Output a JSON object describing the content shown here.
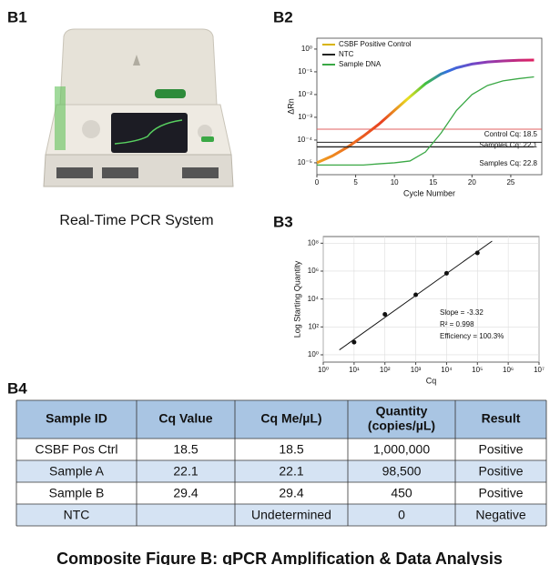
{
  "panels": {
    "b1": "B1",
    "b2": "B2",
    "b3": "B3",
    "b4": "B4"
  },
  "device_caption": "Real-Time PCR System",
  "chart_data": [
    {
      "type": "line",
      "xlabel": "Cycle Number",
      "ylabel": "ΔRn",
      "yscale": "log",
      "grid": false,
      "legend": "top-left",
      "x": [
        0,
        2,
        4,
        6,
        8,
        10,
        12,
        14,
        16,
        18,
        20,
        22,
        24,
        26,
        28
      ],
      "xlim": [
        0,
        29
      ],
      "xticks": [
        0,
        5,
        10,
        15,
        20,
        25
      ],
      "ylim": [
        3e-06,
        3
      ],
      "yticks": [
        {
          "value": 1e-05,
          "label": "10⁻⁵"
        },
        {
          "value": 0.0001,
          "label": "10⁻⁴"
        },
        {
          "value": 0.001,
          "label": "10⁻³"
        },
        {
          "value": 0.01,
          "label": "10⁻²"
        },
        {
          "value": 0.1,
          "label": "10⁻¹"
        },
        {
          "value": 1,
          "label": "10⁰"
        }
      ],
      "series": [
        {
          "name": "CSBF Positive Control",
          "color": "#d8b400",
          "values": [
            1e-05,
            2e-05,
            5e-05,
            0.00015,
            0.0005,
            0.002,
            0.008,
            0.03,
            0.08,
            0.15,
            0.22,
            0.27,
            0.3,
            0.32,
            0.33
          ]
        },
        {
          "name": "NTC",
          "color": "#222222",
          "values": [
            5e-05,
            5e-05,
            5e-05,
            5e-05,
            5e-05,
            5e-05,
            5e-05,
            5e-05,
            5e-05,
            5e-05,
            5e-05,
            5e-05,
            5e-05,
            5e-05,
            5e-05
          ]
        },
        {
          "name": "Sample DNA",
          "color": "#3aa845",
          "values": [
            8e-06,
            8e-06,
            8e-06,
            8e-06,
            9e-06,
            1e-05,
            1.2e-05,
            3e-05,
            0.0002,
            0.002,
            0.01,
            0.025,
            0.04,
            0.05,
            0.06
          ]
        }
      ],
      "thresholds": [
        {
          "value": 0.0003,
          "color": "#e06060"
        },
        {
          "value": 8e-05,
          "color": "#222222"
        }
      ],
      "annotations": [
        "Control Cq: 18.5",
        "Samples Cq: 22.1",
        "Samples Cq: 22.8"
      ]
    },
    {
      "type": "scatter",
      "xlabel": "Cq",
      "ylabel": "Log Starting Quantity",
      "xscale": "log",
      "yscale": "log",
      "grid": true,
      "color": "#111111",
      "x": [
        10,
        100,
        1000,
        10000,
        100000
      ],
      "values": [
        8,
        800,
        20000,
        700000,
        20000000
      ],
      "xlim": [
        1,
        10000000
      ],
      "xticks": [
        {
          "value": 1,
          "label": "10⁰"
        },
        {
          "value": 10,
          "label": "10¹"
        },
        {
          "value": 100,
          "label": "10²"
        },
        {
          "value": 1000,
          "label": "10³"
        },
        {
          "value": 10000,
          "label": "10⁴"
        },
        {
          "value": 100000,
          "label": "10⁵"
        },
        {
          "value": 1000000,
          "label": "10⁶"
        },
        {
          "value": 10000000,
          "label": "10⁷"
        }
      ],
      "ylim": [
        0.3,
        300000000
      ],
      "yticks": [
        {
          "value": 1,
          "label": "10⁰"
        },
        {
          "value": 100,
          "label": "10²"
        },
        {
          "value": 10000,
          "label": "10⁴"
        },
        {
          "value": 1000000,
          "label": "10⁶"
        },
        {
          "value": 100000000,
          "label": "10⁸"
        }
      ],
      "annotations": [
        "Slope = -3.32",
        "R² = 0.998",
        "Efficiency = 100.3%"
      ]
    }
  ],
  "table": {
    "header": [
      "Sample ID",
      "Cq Value",
      "Cq Me/µL)",
      [
        "Quantity",
        "(copies/µL)"
      ],
      "Result"
    ],
    "rows": [
      [
        "CSBF Pos Ctrl",
        "18.5",
        "18.5",
        "1,000,000",
        "Positive"
      ],
      [
        "Sample A",
        "22.1",
        "22.1",
        "98,500",
        "Positive"
      ],
      [
        "Sample B",
        "29.4",
        "29.4",
        "450",
        "Positive"
      ],
      [
        "NTC",
        "",
        "Undetermined",
        "0",
        "Negative"
      ]
    ]
  },
  "caption": "Composite Figure B: qPCR Amplification & Data Analysis"
}
